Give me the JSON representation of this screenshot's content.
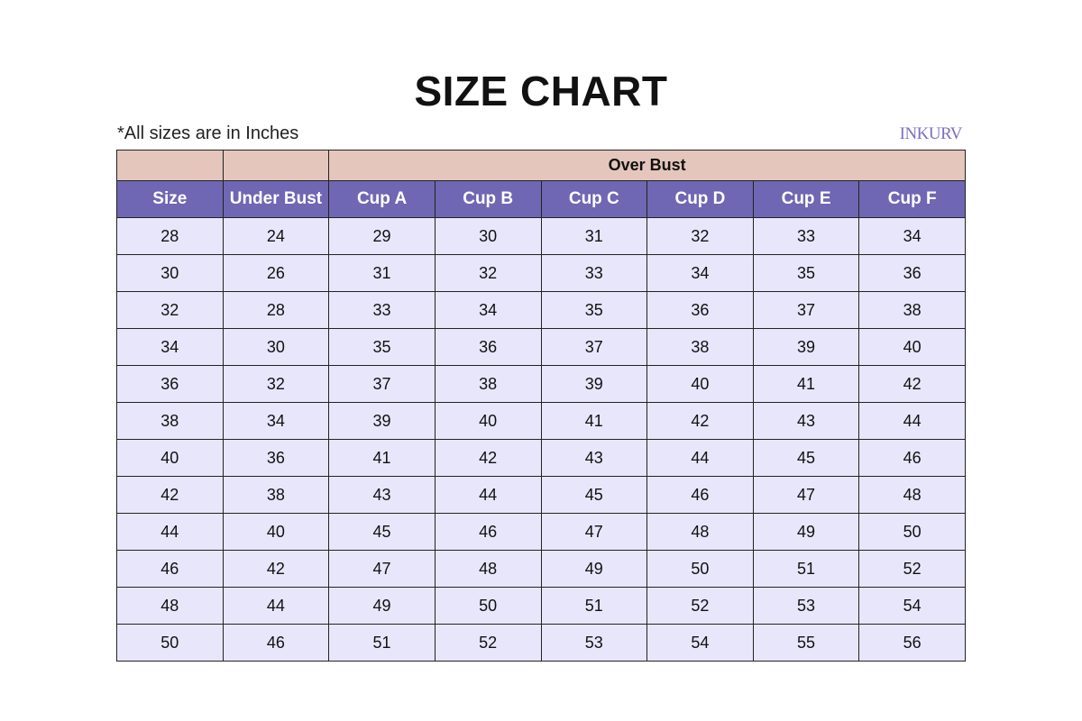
{
  "title": "SIZE CHART",
  "note": "*All sizes are in Inches",
  "logo": "INKURV",
  "colors": {
    "group_header": "#e4c6bc",
    "column_header": "#6f67b3",
    "row": "#e8e6fb"
  },
  "group_header": "Over Bust",
  "columns": [
    "Size",
    "Under Bust",
    "Cup A",
    "Cup B",
    "Cup C",
    "Cup D",
    "Cup E",
    "Cup F"
  ],
  "rows": [
    [
      "28",
      "24",
      "29",
      "30",
      "31",
      "32",
      "33",
      "34"
    ],
    [
      "30",
      "26",
      "31",
      "32",
      "33",
      "34",
      "35",
      "36"
    ],
    [
      "32",
      "28",
      "33",
      "34",
      "35",
      "36",
      "37",
      "38"
    ],
    [
      "34",
      "30",
      "35",
      "36",
      "37",
      "38",
      "39",
      "40"
    ],
    [
      "36",
      "32",
      "37",
      "38",
      "39",
      "40",
      "41",
      "42"
    ],
    [
      "38",
      "34",
      "39",
      "40",
      "41",
      "42",
      "43",
      "44"
    ],
    [
      "40",
      "36",
      "41",
      "42",
      "43",
      "44",
      "45",
      "46"
    ],
    [
      "42",
      "38",
      "43",
      "44",
      "45",
      "46",
      "47",
      "48"
    ],
    [
      "44",
      "40",
      "45",
      "46",
      "47",
      "48",
      "49",
      "50"
    ],
    [
      "46",
      "42",
      "47",
      "48",
      "49",
      "50",
      "51",
      "52"
    ],
    [
      "48",
      "44",
      "49",
      "50",
      "51",
      "52",
      "53",
      "54"
    ],
    [
      "50",
      "46",
      "51",
      "52",
      "53",
      "54",
      "55",
      "56"
    ]
  ]
}
